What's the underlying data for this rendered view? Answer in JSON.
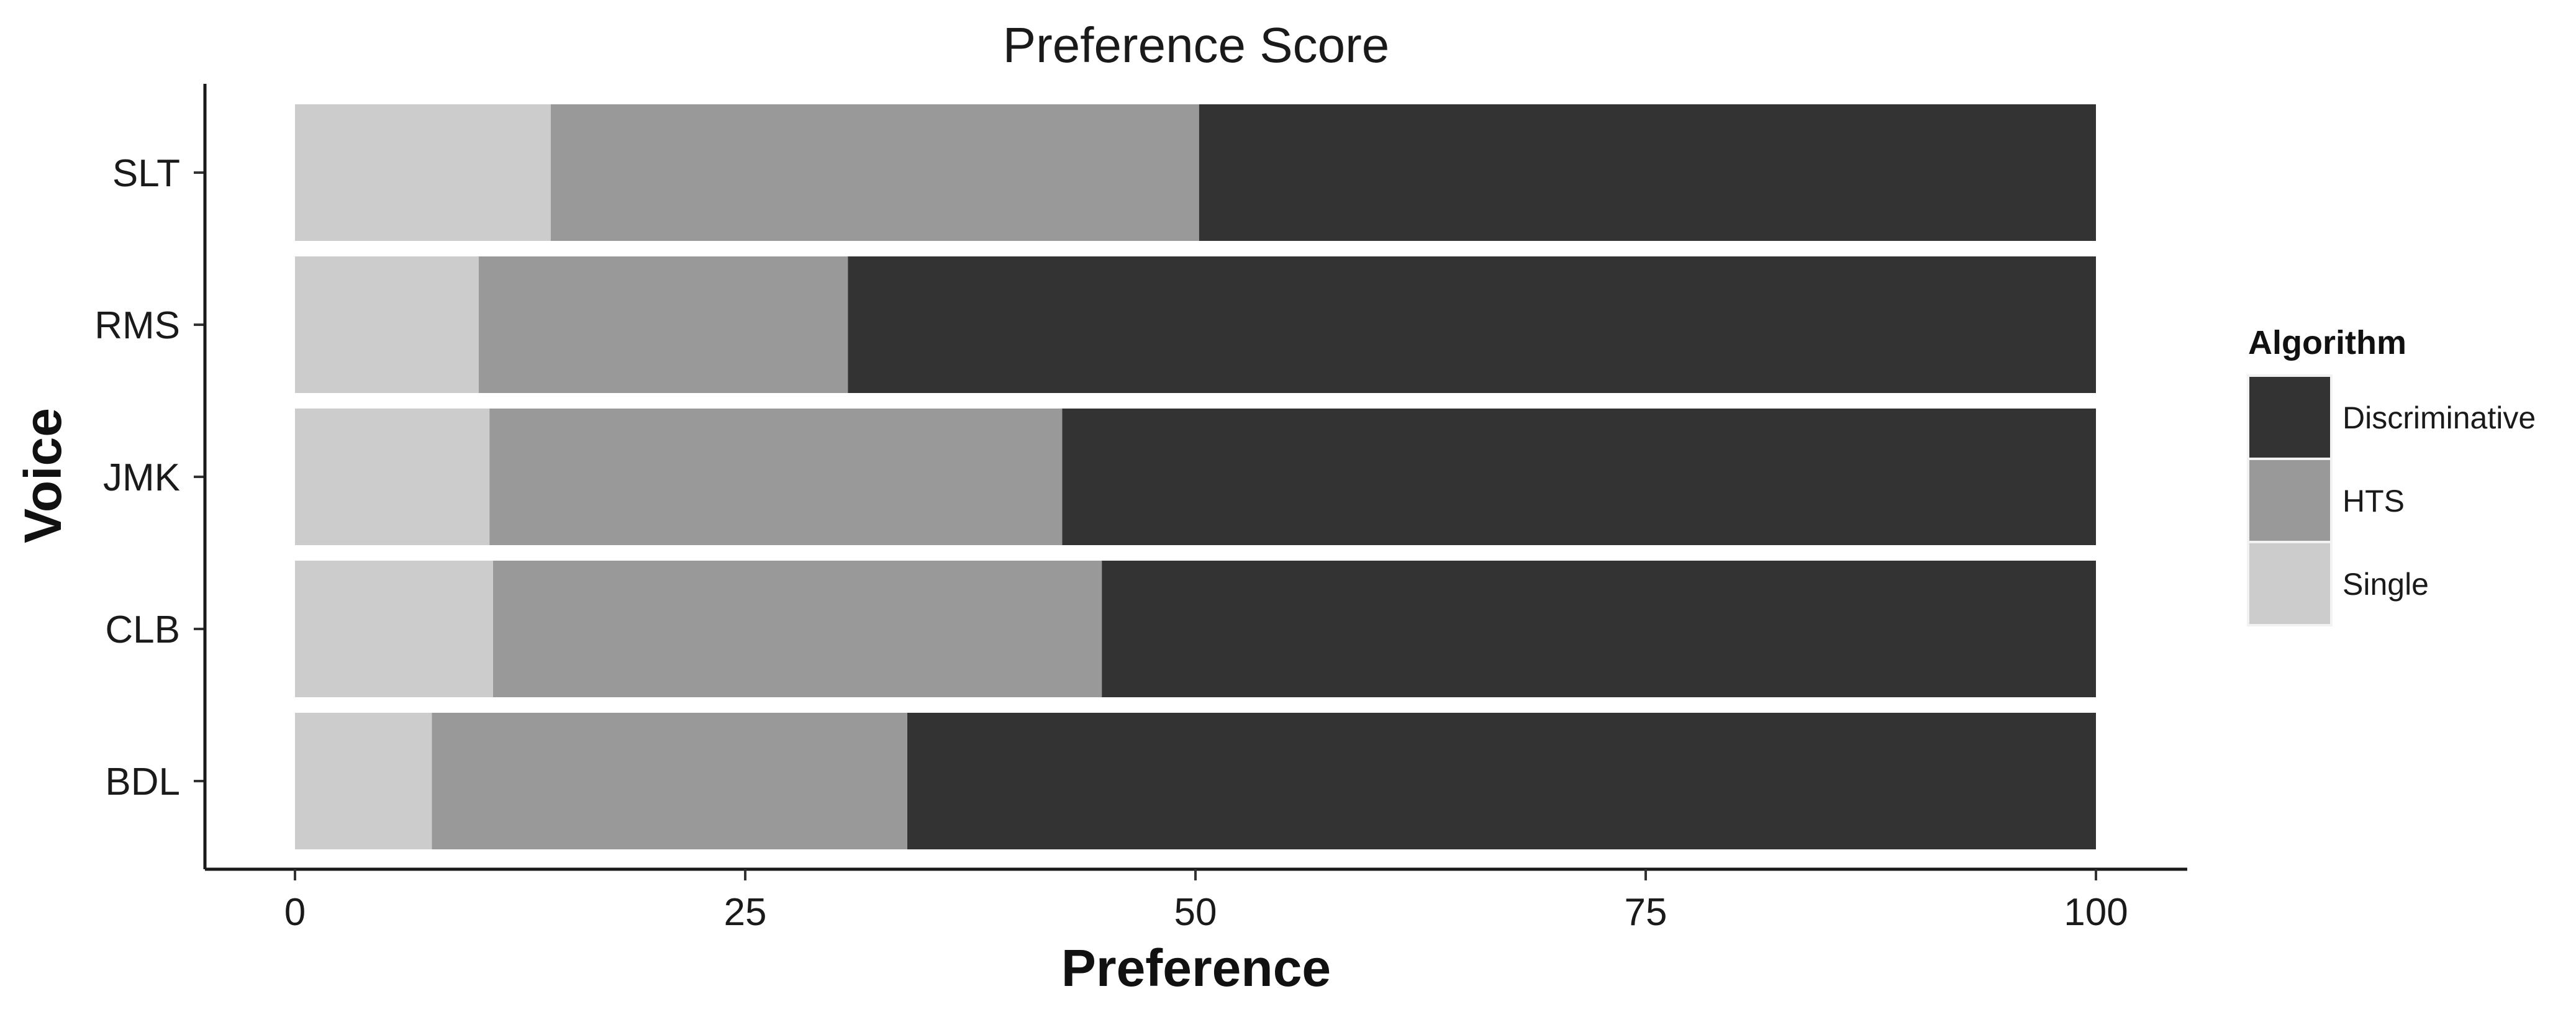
{
  "chart_data": {
    "type": "bar",
    "orientation": "horizontal",
    "stacked": true,
    "title": "Preference Score",
    "xlabel": "Preference",
    "ylabel": "Voice",
    "xlim": [
      0,
      100
    ],
    "x_ticks": [
      "0",
      "25",
      "50",
      "75",
      "100"
    ],
    "categories": [
      "SLT",
      "RMS",
      "JMK",
      "CLB",
      "BDL"
    ],
    "series": [
      {
        "name": "Single",
        "color": "#cccccc",
        "values": [
          14.2,
          10.2,
          10.8,
          11.0,
          7.6
        ]
      },
      {
        "name": "HTS",
        "color": "#999999",
        "values": [
          36.0,
          20.5,
          31.8,
          33.8,
          26.4
        ]
      },
      {
        "name": "Discriminative",
        "color": "#333333",
        "values": [
          49.8,
          69.3,
          57.4,
          55.2,
          66.0
        ]
      }
    ],
    "grid": false,
    "legend": {
      "title": "Algorithm",
      "position": "right",
      "entries": [
        "Discriminative",
        "HTS",
        "Single"
      ]
    }
  }
}
